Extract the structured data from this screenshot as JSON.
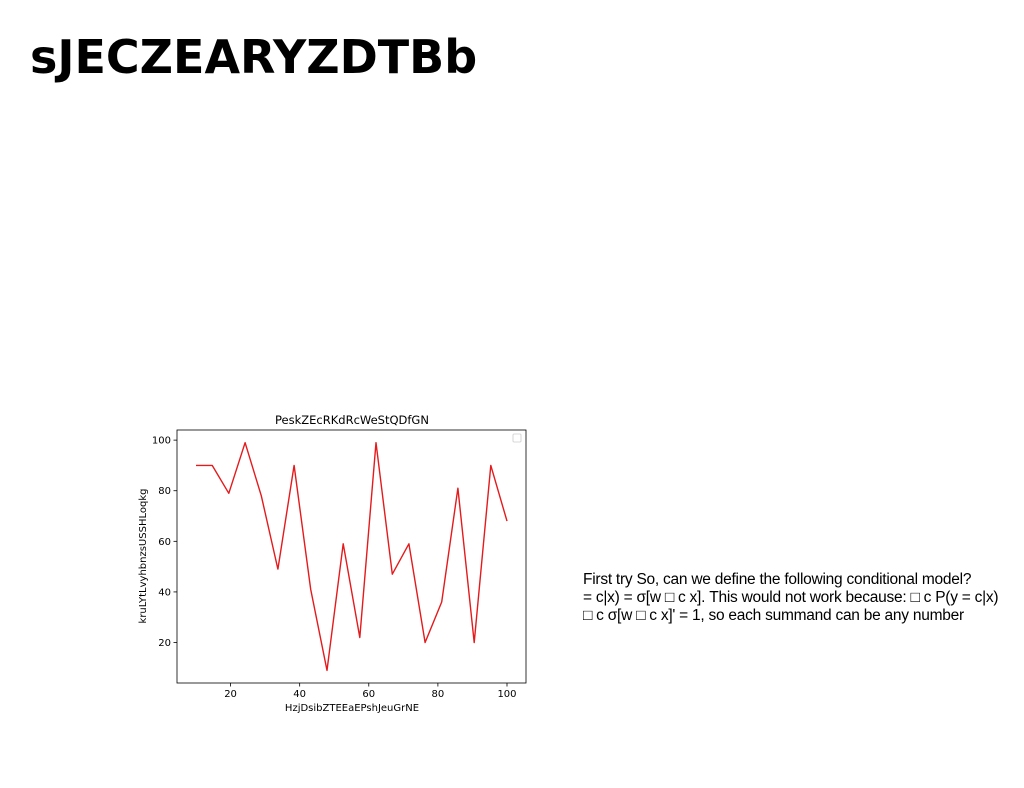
{
  "slide": {
    "title": "sJECZEARYZDTBb"
  },
  "text_block": {
    "lines": [
      "First try So, can we define the following conditional model?",
      "= c|x) = σ[w □ c x]. This would not work because: □ c P(y = c|x)",
      "□ c σ[w □ c x]' = 1, so each summand can be any number"
    ]
  },
  "chart_data": {
    "type": "line",
    "title": "PeskZEcRKdRcWeStQDfGN",
    "xlabel": "HzjDsibZTEEaEPshJeuGrNE",
    "ylabel": "kruLYtLvyhbnzsUSSHLoqkg",
    "xlim": [
      4.5,
      105.5
    ],
    "ylim": [
      4,
      104
    ],
    "xticks": [
      20,
      40,
      60,
      80,
      100
    ],
    "yticks": [
      20,
      40,
      60,
      80,
      100
    ],
    "grid": false,
    "legend": "top-right (empty)",
    "series": [
      {
        "color": "#e41a1c",
        "x": [
          10,
          14.7,
          19.5,
          24.2,
          28.9,
          33.7,
          38.4,
          43.2,
          47.9,
          52.6,
          57.4,
          62.1,
          66.8,
          71.6,
          76.3,
          81.1,
          85.8,
          90.5,
          95.3,
          100
        ],
        "y": [
          90,
          90,
          79,
          99,
          78,
          49,
          90,
          41,
          9,
          59,
          22,
          99,
          47,
          59,
          20,
          36,
          81,
          20,
          90,
          68
        ]
      }
    ]
  }
}
